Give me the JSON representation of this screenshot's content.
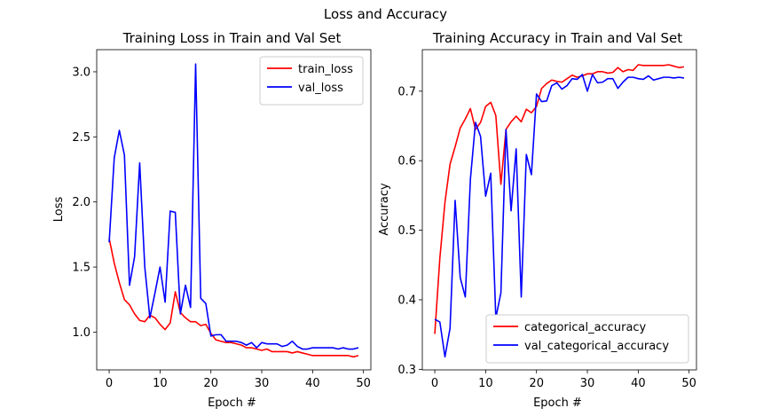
{
  "figure": {
    "suptitle": "Loss and Accuracy"
  },
  "chart_data": [
    {
      "type": "line",
      "title": "Training Loss in Train and Val Set",
      "xlabel": "Epoch #",
      "ylabel": "Loss",
      "xlim": [
        -2.45,
        51.45
      ],
      "ylim": [
        0.71,
        3.17
      ],
      "xticks": [
        0,
        10,
        20,
        30,
        40,
        50
      ],
      "yticks": [
        1.0,
        1.5,
        2.0,
        2.5,
        3.0
      ],
      "ytick_labels": [
        "1.0",
        "1.5",
        "2.0",
        "2.5",
        "3.0"
      ],
      "grid": false,
      "legend_position": "top-right",
      "x": [
        0,
        1,
        2,
        3,
        4,
        5,
        6,
        7,
        8,
        9,
        10,
        11,
        12,
        13,
        14,
        15,
        16,
        17,
        18,
        19,
        20,
        21,
        22,
        23,
        24,
        25,
        26,
        27,
        28,
        29,
        30,
        31,
        32,
        33,
        34,
        35,
        36,
        37,
        38,
        39,
        40,
        41,
        42,
        43,
        44,
        45,
        46,
        47,
        48,
        49
      ],
      "series": [
        {
          "name": "train_loss",
          "color": "#ff0000",
          "values": [
            1.72,
            1.53,
            1.38,
            1.25,
            1.21,
            1.14,
            1.09,
            1.08,
            1.13,
            1.11,
            1.06,
            1.02,
            1.07,
            1.31,
            1.15,
            1.11,
            1.08,
            1.08,
            1.05,
            1.06,
            0.99,
            0.94,
            0.93,
            0.92,
            0.92,
            0.91,
            0.9,
            0.88,
            0.88,
            0.87,
            0.86,
            0.87,
            0.85,
            0.85,
            0.85,
            0.85,
            0.84,
            0.85,
            0.84,
            0.83,
            0.82,
            0.82,
            0.82,
            0.82,
            0.82,
            0.82,
            0.82,
            0.82,
            0.81,
            0.82
          ]
        },
        {
          "name": "val_loss",
          "color": "#0000ff",
          "values": [
            1.69,
            2.34,
            2.55,
            2.36,
            1.36,
            1.58,
            2.3,
            1.5,
            1.11,
            1.3,
            1.5,
            1.23,
            1.93,
            1.92,
            1.14,
            1.36,
            1.19,
            3.06,
            1.26,
            1.22,
            0.97,
            0.98,
            0.98,
            0.93,
            0.93,
            0.93,
            0.92,
            0.9,
            0.92,
            0.88,
            0.92,
            0.91,
            0.91,
            0.91,
            0.89,
            0.9,
            0.93,
            0.89,
            0.87,
            0.87,
            0.88,
            0.88,
            0.88,
            0.88,
            0.88,
            0.87,
            0.88,
            0.87,
            0.87,
            0.88
          ]
        }
      ]
    },
    {
      "type": "line",
      "title": "Training Accuracy in Train and Val Set",
      "xlabel": "Epoch #",
      "ylabel": "Accuracy",
      "xlim": [
        -2.45,
        51.45
      ],
      "ylim": [
        0.2992,
        0.7597
      ],
      "xticks": [
        0,
        10,
        20,
        30,
        40,
        50
      ],
      "yticks": [
        0.3,
        0.4,
        0.5,
        0.6,
        0.7
      ],
      "ytick_labels": [
        "0.3",
        "0.4",
        "0.5",
        "0.6",
        "0.7"
      ],
      "grid": false,
      "legend_position": "bottom-right",
      "x": [
        0,
        1,
        2,
        3,
        4,
        5,
        6,
        7,
        8,
        9,
        10,
        11,
        12,
        13,
        14,
        15,
        16,
        17,
        18,
        19,
        20,
        21,
        22,
        23,
        24,
        25,
        26,
        27,
        28,
        29,
        30,
        31,
        32,
        33,
        34,
        35,
        36,
        37,
        38,
        39,
        40,
        41,
        42,
        43,
        44,
        45,
        46,
        47,
        48,
        49
      ],
      "series": [
        {
          "name": "categorical_accuracy",
          "color": "#ff0000",
          "values": [
            0.351,
            0.46,
            0.54,
            0.595,
            0.62,
            0.647,
            0.66,
            0.675,
            0.645,
            0.655,
            0.678,
            0.684,
            0.665,
            0.566,
            0.645,
            0.656,
            0.664,
            0.656,
            0.674,
            0.669,
            0.678,
            0.704,
            0.711,
            0.716,
            0.714,
            0.713,
            0.718,
            0.723,
            0.72,
            0.722,
            0.725,
            0.725,
            0.728,
            0.728,
            0.726,
            0.727,
            0.734,
            0.728,
            0.731,
            0.73,
            0.738,
            0.737,
            0.737,
            0.737,
            0.737,
            0.737,
            0.738,
            0.736,
            0.734,
            0.735
          ]
        },
        {
          "name": "val_categorical_accuracy",
          "color": "#0000ff",
          "values": [
            0.372,
            0.368,
            0.318,
            0.359,
            0.543,
            0.432,
            0.404,
            0.573,
            0.655,
            0.635,
            0.549,
            0.582,
            0.374,
            0.41,
            0.645,
            0.528,
            0.617,
            0.404,
            0.609,
            0.58,
            0.696,
            0.685,
            0.686,
            0.708,
            0.712,
            0.703,
            0.708,
            0.718,
            0.717,
            0.724,
            0.7,
            0.724,
            0.712,
            0.713,
            0.718,
            0.718,
            0.704,
            0.713,
            0.72,
            0.72,
            0.718,
            0.717,
            0.722,
            0.716,
            0.718,
            0.72,
            0.72,
            0.719,
            0.72,
            0.719
          ]
        }
      ]
    }
  ]
}
